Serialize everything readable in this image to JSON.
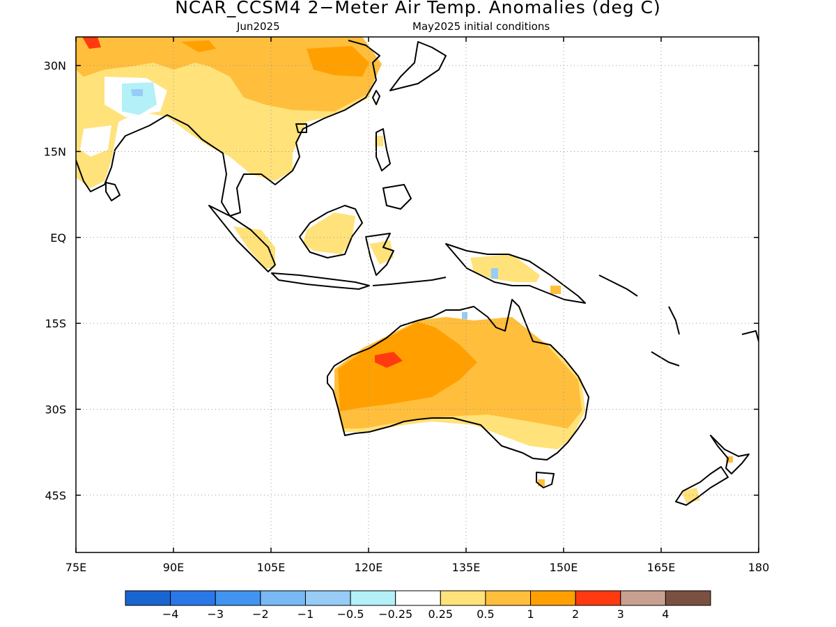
{
  "title": "NCAR_CCSM4 2−Meter Air Temp. Anomalies (deg C)",
  "subtitle_left": "Jun2025",
  "subtitle_right": "May2025 initial conditions",
  "map": {
    "lon_range": [
      75,
      180
    ],
    "lat_range": [
      -55,
      35
    ],
    "lon_ticks": [
      {
        "value": 75,
        "label": "75E"
      },
      {
        "value": 90,
        "label": "90E"
      },
      {
        "value": 105,
        "label": "105E"
      },
      {
        "value": 120,
        "label": "120E"
      },
      {
        "value": 135,
        "label": "135E"
      },
      {
        "value": 150,
        "label": "150E"
      },
      {
        "value": 165,
        "label": "165E"
      },
      {
        "value": 180,
        "label": "180"
      }
    ],
    "lat_ticks": [
      {
        "value": 30,
        "label": "30N"
      },
      {
        "value": 15,
        "label": "15N"
      },
      {
        "value": 0,
        "label": "EQ"
      },
      {
        "value": -15,
        "label": "15S"
      },
      {
        "value": -30,
        "label": "30S"
      },
      {
        "value": -45,
        "label": "45S"
      }
    ],
    "grid": "dotted"
  },
  "colorbar": {
    "colors": [
      "#1a66d0",
      "#2a78e8",
      "#4194f0",
      "#78b8f4",
      "#96ccf6",
      "#b4f0f8",
      "#ffffff",
      "#ffe27a",
      "#ffbe3c",
      "#ffa000",
      "#ff3a10",
      "#c8a090",
      "#7a5040"
    ],
    "labels": [
      "−4",
      "−3",
      "−2",
      "−1",
      "−0.5",
      "−0.25",
      "0.25",
      "0.5",
      "1",
      "2",
      "3",
      "4"
    ]
  }
}
